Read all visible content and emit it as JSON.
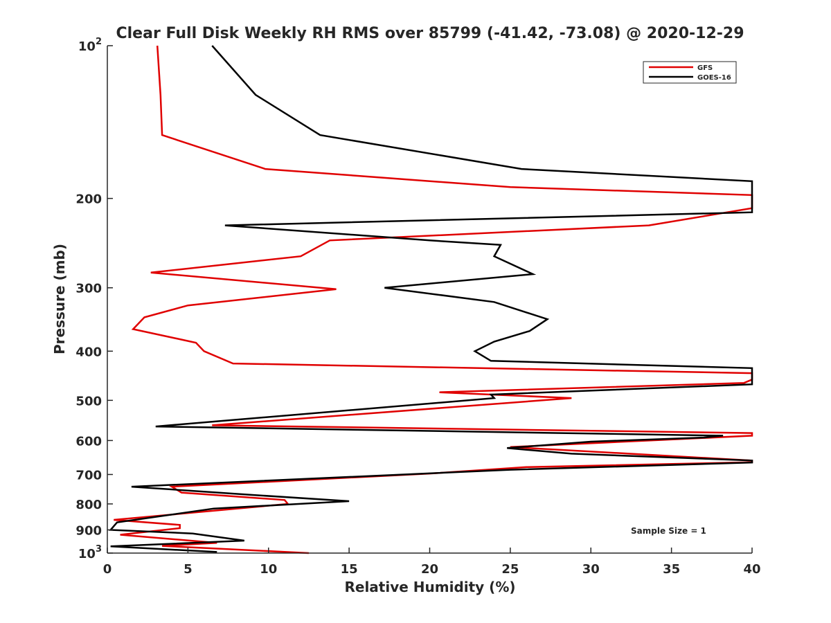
{
  "chart_data": {
    "type": "line",
    "title": "Clear Full Disk Weekly RH RMS over 85799 (-41.42, -73.08) @ 2020-12-29",
    "xlabel": "Relative Humidity (%)",
    "ylabel": "Pressure (mb)",
    "xlim": [
      0,
      40
    ],
    "ylim": [
      100,
      1000
    ],
    "y_scale": "log",
    "y_reversed": true,
    "x_ticks": [
      "0",
      "5",
      "10",
      "15",
      "20",
      "25",
      "30",
      "35",
      "40"
    ],
    "y_ticks": [
      {
        "value": 100,
        "base": "10",
        "sup": "2"
      },
      {
        "value": 200,
        "label": "200"
      },
      {
        "value": 300,
        "label": "300"
      },
      {
        "value": 400,
        "label": "400"
      },
      {
        "value": 500,
        "label": "500"
      },
      {
        "value": 600,
        "label": "600"
      },
      {
        "value": 700,
        "label": "700"
      },
      {
        "value": 800,
        "label": "800"
      },
      {
        "value": 900,
        "label": "900"
      },
      {
        "value": 1000,
        "base": "10",
        "sup": "3"
      }
    ],
    "grid": false,
    "legend_position": "top-right",
    "annotation": "Sample Size = 1",
    "series": [
      {
        "name": "GFS",
        "color": "#e00000",
        "points": [
          [
            3.1,
            100
          ],
          [
            3.3,
            125
          ],
          [
            3.4,
            150
          ],
          [
            9.8,
            175
          ],
          [
            25.0,
            190
          ],
          [
            40.0,
            197
          ],
          [
            40.0,
            209
          ],
          [
            33.6,
            226
          ],
          [
            13.8,
            242
          ],
          [
            12.0,
            260
          ],
          [
            2.7,
            280
          ],
          [
            14.2,
            302
          ],
          [
            5.0,
            325
          ],
          [
            2.3,
            343
          ],
          [
            1.6,
            362
          ],
          [
            5.5,
            385
          ],
          [
            6.0,
            400
          ],
          [
            7.8,
            423
          ],
          [
            40.0,
            442
          ],
          [
            40.0,
            455
          ],
          [
            39.5,
            462
          ],
          [
            20.6,
            482
          ],
          [
            28.8,
            495
          ],
          [
            6.5,
            560
          ],
          [
            40.0,
            580
          ],
          [
            40.0,
            587
          ],
          [
            25.0,
            618
          ],
          [
            40.0,
            657
          ],
          [
            40.0,
            662
          ],
          [
            26.0,
            677
          ],
          [
            20.0,
            697
          ],
          [
            4.0,
            740
          ],
          [
            4.6,
            760
          ],
          [
            11.0,
            786
          ],
          [
            11.2,
            800
          ],
          [
            0.4,
            860
          ],
          [
            4.5,
            880
          ],
          [
            4.5,
            893
          ],
          [
            0.8,
            920
          ],
          [
            6.8,
            955
          ],
          [
            3.4,
            968
          ],
          [
            12.5,
            1000
          ]
        ]
      },
      {
        "name": "GOES-16",
        "color": "#000000",
        "points": [
          [
            6.5,
            100
          ],
          [
            9.2,
            125
          ],
          [
            13.2,
            150
          ],
          [
            25.7,
            175
          ],
          [
            40.0,
            185
          ],
          [
            40.0,
            213
          ],
          [
            7.3,
            226
          ],
          [
            20.0,
            242
          ],
          [
            24.4,
            247
          ],
          [
            24.0,
            260
          ],
          [
            26.4,
            282
          ],
          [
            17.2,
            300
          ],
          [
            24.0,
            320
          ],
          [
            27.3,
            346
          ],
          [
            26.2,
            365
          ],
          [
            24.0,
            383
          ],
          [
            22.8,
            400
          ],
          [
            23.8,
            418
          ],
          [
            40.0,
            432
          ],
          [
            40.0,
            465
          ],
          [
            23.8,
            487
          ],
          [
            24.0,
            495
          ],
          [
            3.0,
            563
          ],
          [
            38.2,
            587
          ],
          [
            37.0,
            592
          ],
          [
            30.0,
            603
          ],
          [
            24.8,
            621
          ],
          [
            28.8,
            637
          ],
          [
            40.0,
            657
          ],
          [
            40.0,
            663
          ],
          [
            25.0,
            685
          ],
          [
            1.5,
            740
          ],
          [
            9.0,
            768
          ],
          [
            15.0,
            790
          ],
          [
            6.6,
            817
          ],
          [
            0.6,
            870
          ],
          [
            0.2,
            900
          ],
          [
            5.3,
            915
          ],
          [
            8.5,
            945
          ],
          [
            0.2,
            970
          ],
          [
            6.8,
            995
          ]
        ]
      }
    ]
  }
}
